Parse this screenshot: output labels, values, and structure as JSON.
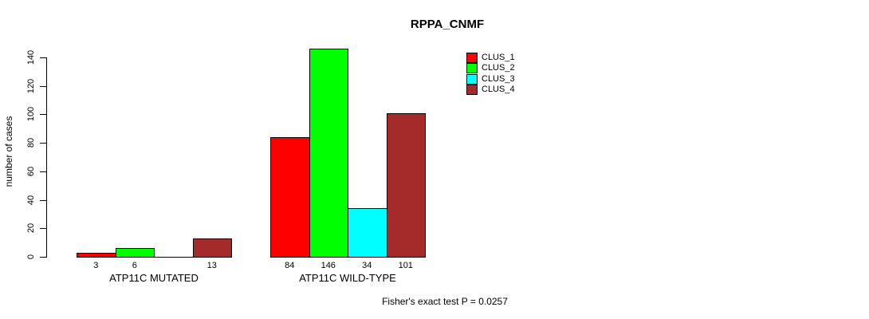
{
  "chart_data": {
    "type": "bar",
    "title": "RPPA_CNMF",
    "ylabel": "number of cases",
    "xlabel": "",
    "ylim": [
      0,
      140
    ],
    "yticks": [
      0,
      20,
      40,
      60,
      80,
      100,
      120,
      140
    ],
    "grid": false,
    "legend_position": "top-right",
    "categories": [
      "ATP11C MUTATED",
      "ATP11C WILD-TYPE"
    ],
    "series": [
      {
        "name": "CLUS_1",
        "color": "#ff0000",
        "values": [
          3,
          84
        ]
      },
      {
        "name": "CLUS_2",
        "color": "#00ff00",
        "values": [
          6,
          146
        ]
      },
      {
        "name": "CLUS_3",
        "color": "#00ffff",
        "values": [
          0,
          34
        ]
      },
      {
        "name": "CLUS_4",
        "color": "#a52a2a",
        "values": [
          13,
          101
        ]
      }
    ],
    "bar_value_labels": [
      [
        "3",
        "6",
        "",
        "13"
      ],
      [
        "84",
        "146",
        "34",
        "101"
      ]
    ],
    "annotation": "Fisher's exact test P = 0.0257"
  }
}
